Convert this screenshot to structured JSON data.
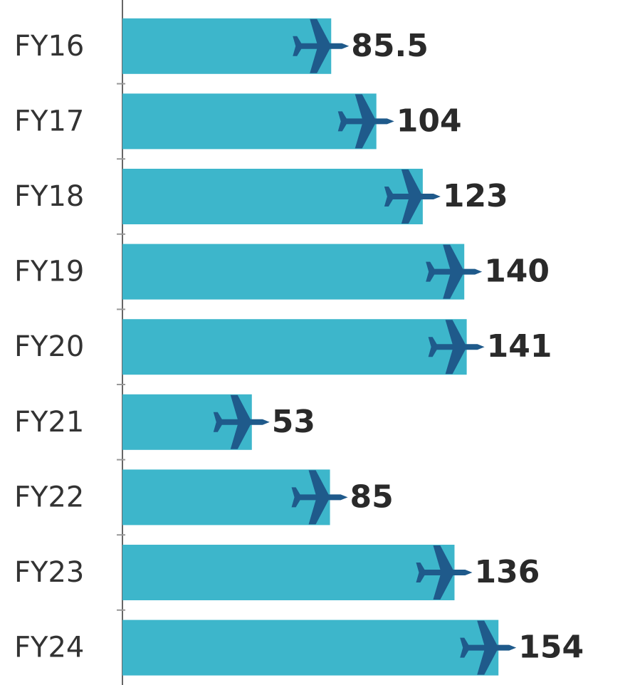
{
  "chart_data": {
    "type": "bar",
    "orientation": "horizontal",
    "categories": [
      "FY16",
      "FY17",
      "FY18",
      "FY19",
      "FY20",
      "FY21",
      "FY22",
      "FY23",
      "FY24"
    ],
    "values": [
      85.5,
      104,
      123,
      140,
      141,
      53,
      85,
      136,
      154
    ],
    "color": "#3db6cb",
    "icon_color": "#1f5a8b",
    "xlim": [
      0,
      200
    ]
  }
}
